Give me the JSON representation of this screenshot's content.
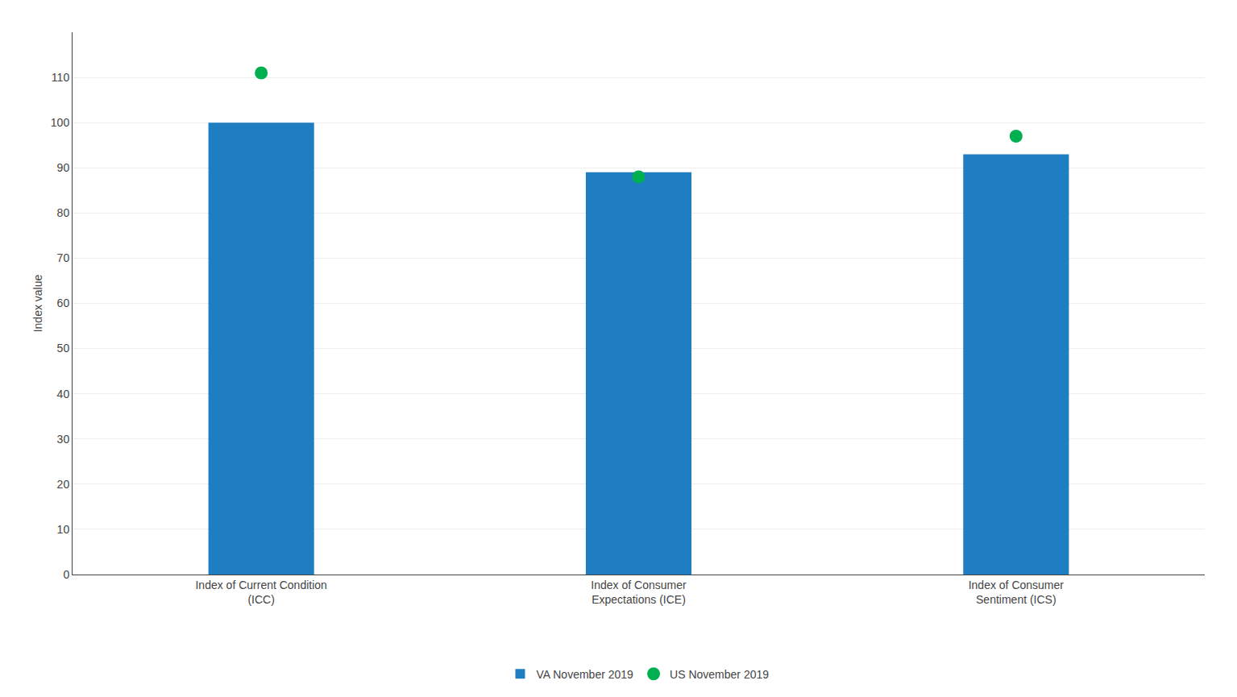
{
  "chart_data": {
    "type": "bar",
    "categories": [
      "Index of Current Condition\n(ICC)",
      "Index of Consumer\nExpectations (ICE)",
      "Index of Consumer\nSentiment (ICS)"
    ],
    "series": [
      {
        "name": "VA November 2019",
        "type": "bar",
        "color": "#1F7EC2",
        "values": [
          100.0,
          89.0,
          93.0
        ]
      },
      {
        "name": "US November 2019",
        "type": "scatter",
        "marker": "circle",
        "color": "#00B050",
        "values": [
          111.0,
          88.0,
          97.0
        ]
      }
    ],
    "ylabel": "Index value",
    "ylim": [
      0,
      120
    ],
    "yticks": [
      0,
      10,
      20,
      30,
      40,
      50,
      60,
      70,
      80,
      90,
      100,
      110
    ],
    "grid": true,
    "legend": "bottom"
  }
}
